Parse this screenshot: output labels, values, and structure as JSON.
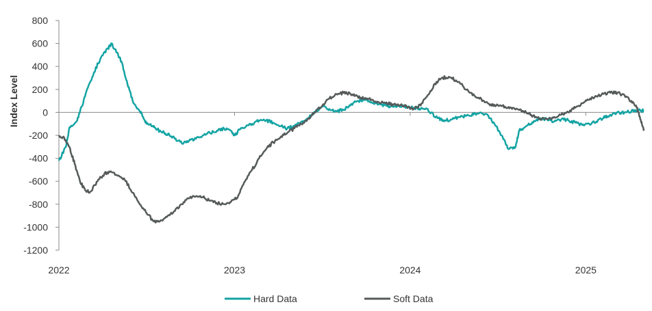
{
  "chart_data": {
    "type": "line",
    "title": "",
    "xlabel": "",
    "ylabel": "Index Level",
    "ylim": [
      -1200,
      800
    ],
    "yticks": [
      800,
      600,
      400,
      200,
      0,
      -200,
      -400,
      -600,
      -800,
      -1000,
      -1200
    ],
    "xlim": [
      2022.0,
      2025.33
    ],
    "xticks": [
      {
        "value": 2022,
        "label": "2022"
      },
      {
        "value": 2023,
        "label": "2023"
      },
      {
        "value": 2024,
        "label": "2024"
      },
      {
        "value": 2025,
        "label": "2025"
      }
    ],
    "grid": false,
    "legend": "bottom",
    "series": [
      {
        "name": "Hard Data",
        "color": "#14a3a3",
        "x": [
          2022.0,
          2022.04,
          2022.06,
          2022.1,
          2022.13,
          2022.16,
          2022.2,
          2022.24,
          2022.28,
          2022.3,
          2022.33,
          2022.36,
          2022.39,
          2022.42,
          2022.46,
          2022.48,
          2022.5,
          2022.53,
          2022.56,
          2022.6,
          2022.63,
          2022.66,
          2022.7,
          2022.74,
          2022.78,
          2022.82,
          2022.86,
          2022.9,
          2022.94,
          2022.98,
          2023.0,
          2023.03,
          2023.06,
          2023.1,
          2023.14,
          2023.18,
          2023.22,
          2023.26,
          2023.3,
          2023.34,
          2023.38,
          2023.42,
          2023.46,
          2023.5,
          2023.54,
          2023.58,
          2023.62,
          2023.66,
          2023.7,
          2023.74,
          2023.78,
          2023.82,
          2023.86,
          2023.9,
          2023.94,
          2023.98,
          2024.02,
          2024.06,
          2024.1,
          2024.14,
          2024.18,
          2024.2,
          2024.24,
          2024.28,
          2024.32,
          2024.36,
          2024.4,
          2024.44,
          2024.48,
          2024.52,
          2024.56,
          2024.6,
          2024.62,
          2024.66,
          2024.7,
          2024.74,
          2024.78,
          2024.82,
          2024.86,
          2024.9,
          2024.94,
          2024.98,
          2025.02,
          2025.06,
          2025.1,
          2025.14,
          2025.18,
          2025.22,
          2025.26,
          2025.29,
          2025.31,
          2025.33
        ],
        "y": [
          -420,
          -300,
          -130,
          -80,
          50,
          200,
          350,
          480,
          560,
          600,
          520,
          430,
          250,
          100,
          10,
          -40,
          -100,
          -120,
          -150,
          -180,
          -200,
          -230,
          -270,
          -250,
          -230,
          -200,
          -180,
          -160,
          -140,
          -160,
          -200,
          -150,
          -130,
          -100,
          -70,
          -70,
          -90,
          -120,
          -140,
          -120,
          -80,
          -50,
          0,
          50,
          30,
          10,
          20,
          60,
          100,
          110,
          90,
          70,
          60,
          50,
          50,
          50,
          40,
          30,
          30,
          -40,
          -60,
          -70,
          -60,
          -40,
          -30,
          -20,
          0,
          -20,
          -100,
          -200,
          -320,
          -300,
          -160,
          -120,
          -90,
          -50,
          -60,
          -80,
          -60,
          -70,
          -90,
          -110,
          -100,
          -80,
          -50,
          -20,
          0,
          0,
          10,
          10,
          20,
          10
        ]
      },
      {
        "name": "Soft Data",
        "color": "#555a5a",
        "x": [
          2022.0,
          2022.03,
          2022.06,
          2022.09,
          2022.12,
          2022.15,
          2022.18,
          2022.22,
          2022.26,
          2022.3,
          2022.34,
          2022.38,
          2022.42,
          2022.46,
          2022.5,
          2022.54,
          2022.58,
          2022.62,
          2022.66,
          2022.7,
          2022.74,
          2022.78,
          2022.82,
          2022.86,
          2022.9,
          2022.94,
          2022.98,
          2023.02,
          2023.06,
          2023.1,
          2023.14,
          2023.18,
          2023.22,
          2023.26,
          2023.3,
          2023.34,
          2023.38,
          2023.42,
          2023.46,
          2023.5,
          2023.54,
          2023.58,
          2023.62,
          2023.66,
          2023.7,
          2023.74,
          2023.78,
          2023.82,
          2023.86,
          2023.9,
          2023.94,
          2023.98,
          2024.02,
          2024.06,
          2024.1,
          2024.14,
          2024.18,
          2024.22,
          2024.26,
          2024.3,
          2024.34,
          2024.38,
          2024.42,
          2024.46,
          2024.5,
          2024.54,
          2024.58,
          2024.62,
          2024.66,
          2024.7,
          2024.74,
          2024.78,
          2024.82,
          2024.86,
          2024.9,
          2024.94,
          2024.98,
          2025.02,
          2025.06,
          2025.1,
          2025.14,
          2025.18,
          2025.22,
          2025.26,
          2025.29,
          2025.31,
          2025.33
        ],
        "y": [
          -200,
          -220,
          -300,
          -450,
          -600,
          -680,
          -690,
          -600,
          -530,
          -520,
          -550,
          -600,
          -700,
          -800,
          -880,
          -950,
          -940,
          -900,
          -860,
          -800,
          -750,
          -730,
          -740,
          -770,
          -790,
          -800,
          -780,
          -730,
          -600,
          -500,
          -400,
          -320,
          -260,
          -220,
          -180,
          -140,
          -100,
          -50,
          0,
          60,
          120,
          160,
          170,
          160,
          140,
          120,
          110,
          90,
          80,
          70,
          60,
          50,
          30,
          60,
          150,
          250,
          300,
          310,
          280,
          230,
          170,
          130,
          100,
          70,
          60,
          50,
          30,
          20,
          0,
          -30,
          -60,
          -60,
          -40,
          -20,
          0,
          40,
          80,
          110,
          140,
          160,
          170,
          170,
          150,
          100,
          40,
          -60,
          -160
        ]
      }
    ]
  }
}
